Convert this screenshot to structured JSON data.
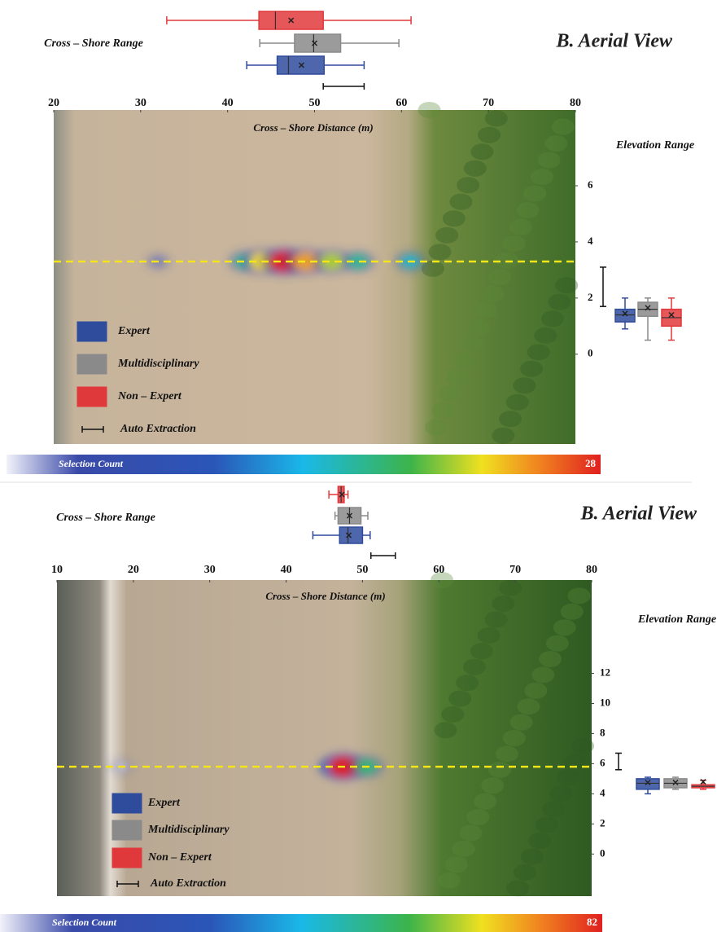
{
  "chart_data": [
    {
      "type": "boxplot",
      "title": "B. Aerial View",
      "range_label": "Cross – Shore Range",
      "x_label": "Cross – Shore Distance (m)",
      "elevation_label": "Elevation Range",
      "xlim": [
        20,
        80
      ],
      "xticks": [
        20,
        30,
        40,
        50,
        60,
        70,
        80
      ],
      "ylim": [
        -3.2,
        8.7
      ],
      "yticks": [
        0,
        2,
        4,
        6
      ],
      "series": [
        {
          "name": "Expert",
          "color": "#2f4b9c",
          "cross_shore": {
            "min": 42.2,
            "q1": 45.7,
            "median": 47,
            "q3": 51.1,
            "max": 55.7,
            "mean": 48.5
          },
          "elevation": {
            "min": 0.9,
            "q1": 1.15,
            "median": 1.4,
            "q3": 1.6,
            "max": 2.0,
            "mean": 1.45
          }
        },
        {
          "name": "Multidisciplinary",
          "color": "#8a8a8a",
          "cross_shore": {
            "min": 43.7,
            "q1": 47.7,
            "median": 49.9,
            "q3": 53,
            "max": 59.7,
            "mean": 50
          },
          "elevation": {
            "min": 0.5,
            "q1": 1.35,
            "median": 1.6,
            "q3": 1.85,
            "max": 2.0,
            "mean": 1.65
          }
        },
        {
          "name": "Non – Expert",
          "color": "#e0393b",
          "cross_shore": {
            "min": 33,
            "q1": 43.6,
            "median": 45.5,
            "q3": 51,
            "max": 61.1,
            "mean": 47.3
          },
          "elevation": {
            "min": 0.5,
            "q1": 1.0,
            "median": 1.3,
            "q3": 1.6,
            "max": 2.0,
            "mean": 1.4
          }
        }
      ],
      "auto_extraction": {
        "label": "Auto Extraction",
        "cross_shore": [
          51,
          55.7
        ],
        "elevation": [
          1.7,
          3.1
        ]
      },
      "transect_elevation": 3.3,
      "hotspots": [
        {
          "x": 32,
          "count": 3
        },
        {
          "x": 42,
          "count": 14
        },
        {
          "x": 44,
          "count": 22
        },
        {
          "x": 46.5,
          "count": 28
        },
        {
          "x": 49,
          "count": 24
        },
        {
          "x": 52,
          "count": 20
        },
        {
          "x": 55,
          "count": 14
        },
        {
          "x": 61,
          "count": 12
        }
      ],
      "colorbar": {
        "label": "Selection Count",
        "max": 28
      }
    },
    {
      "type": "boxplot",
      "title": "B. Aerial View",
      "range_label": "Cross – Shore Range",
      "x_label": "Cross – Shore Distance (m)",
      "elevation_label": "Elevation Range",
      "xlim": [
        10,
        80
      ],
      "xticks": [
        10,
        20,
        30,
        40,
        50,
        60,
        70,
        80
      ],
      "ylim": [
        -2.8,
        18.2
      ],
      "yticks": [
        0,
        2,
        4,
        6,
        8,
        10,
        12
      ],
      "series": [
        {
          "name": "Expert",
          "color": "#2f4b9c",
          "cross_shore": {
            "min": 43.5,
            "q1": 47,
            "median": 48.1,
            "q3": 50,
            "max": 51,
            "mean": 48.2
          },
          "elevation": {
            "min": 4.0,
            "q1": 4.3,
            "median": 4.7,
            "q3": 5.0,
            "max": 5.1,
            "mean": 4.75
          }
        },
        {
          "name": "Multidisciplinary",
          "color": "#8a8a8a",
          "cross_shore": {
            "min": 46.4,
            "q1": 46.8,
            "median": 48.3,
            "q3": 49.8,
            "max": 50.7,
            "mean": 48.3
          },
          "elevation": {
            "min": 4.3,
            "q1": 4.4,
            "median": 4.7,
            "q3": 5.0,
            "max": 5.1,
            "mean": 4.75
          }
        },
        {
          "name": "Non – Expert",
          "color": "#e0393b",
          "cross_shore": {
            "min": 45.6,
            "q1": 46.8,
            "median": 47.2,
            "q3": 47.6,
            "max": 48.1,
            "mean": 47.3
          },
          "elevation": {
            "min": 4.3,
            "q1": 4.4,
            "median": 4.5,
            "q3": 4.6,
            "max": 4.9,
            "mean": 4.8
          }
        }
      ],
      "auto_extraction": {
        "label": "Auto Extraction",
        "cross_shore": [
          51.1,
          54.3
        ],
        "elevation": [
          5.6,
          6.7
        ]
      },
      "transect_elevation": 5.8,
      "hotspots": [
        {
          "x": 18.5,
          "count": 3
        },
        {
          "x": 46,
          "count": 30
        },
        {
          "x": 47.5,
          "count": 82
        },
        {
          "x": 50.5,
          "count": 45
        }
      ],
      "colorbar": {
        "label": "Selection Count",
        "max": 82
      }
    }
  ]
}
